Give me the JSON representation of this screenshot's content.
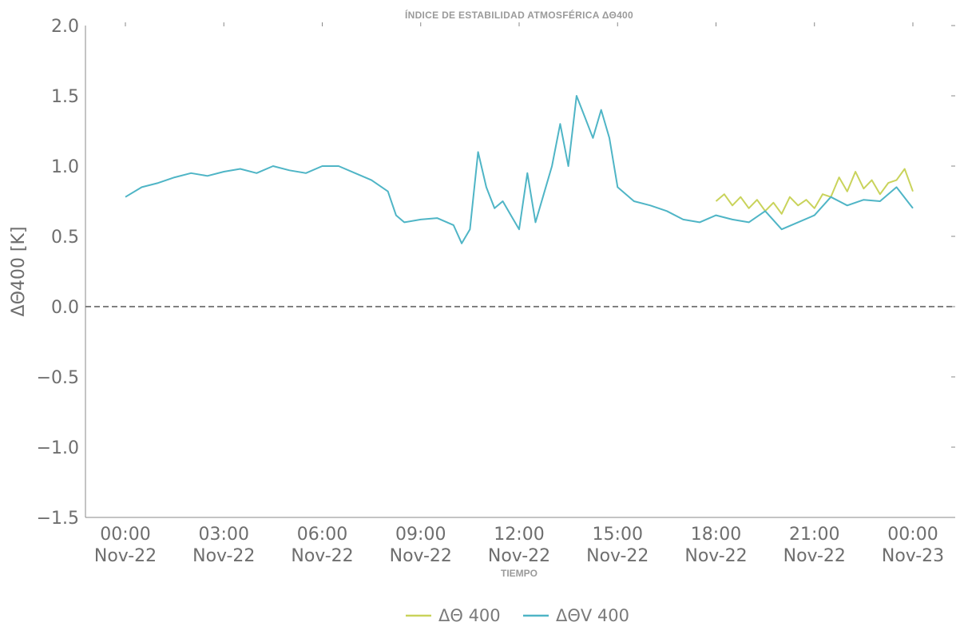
{
  "chart_data": {
    "type": "line",
    "title": "ÍNDICE DE ESTABILIDAD ATMOSFÉRICA ΔΘ400",
    "xlabel": "TIEMPO",
    "ylabel": "ΔΘ400 [K]",
    "ylim": [
      -1.5,
      2.0
    ],
    "xlim": [
      "2022-11-22T00:00",
      "2022-11-23T00:00"
    ],
    "yticks": [
      "2.0",
      "1.5",
      "1.0",
      "0.5",
      "0.0",
      "−0.5",
      "−1.0",
      "−1.5"
    ],
    "xticks": [
      {
        "time": "00:00",
        "date": "Nov-22"
      },
      {
        "time": "03:00",
        "date": "Nov-22"
      },
      {
        "time": "06:00",
        "date": "Nov-22"
      },
      {
        "time": "09:00",
        "date": "Nov-22"
      },
      {
        "time": "12:00",
        "date": "Nov-22"
      },
      {
        "time": "15:00",
        "date": "Nov-22"
      },
      {
        "time": "18:00",
        "date": "Nov-22"
      },
      {
        "time": "21:00",
        "date": "Nov-22"
      },
      {
        "time": "00:00",
        "date": "Nov-23"
      }
    ],
    "reference_line": {
      "y": 0.0,
      "style": "dashed"
    },
    "legend_position": "bottom-center",
    "series": [
      {
        "name": "ΔΘ 400",
        "color": "#c9d35b",
        "x": [
          "2022-11-22T18:00",
          "2022-11-22T18:15",
          "2022-11-22T18:30",
          "2022-11-22T18:45",
          "2022-11-22T19:00",
          "2022-11-22T19:15",
          "2022-11-22T19:30",
          "2022-11-22T19:45",
          "2022-11-22T20:00",
          "2022-11-22T20:15",
          "2022-11-22T20:30",
          "2022-11-22T20:45",
          "2022-11-22T21:00",
          "2022-11-22T21:15",
          "2022-11-22T21:30",
          "2022-11-22T21:45",
          "2022-11-22T22:00",
          "2022-11-22T22:15",
          "2022-11-22T22:30",
          "2022-11-22T22:45",
          "2022-11-22T23:00",
          "2022-11-22T23:15",
          "2022-11-22T23:30",
          "2022-11-22T23:45",
          "2022-11-23T00:00"
        ],
        "y": [
          0.75,
          0.8,
          0.72,
          0.78,
          0.7,
          0.76,
          0.68,
          0.74,
          0.66,
          0.78,
          0.72,
          0.76,
          0.7,
          0.8,
          0.78,
          0.92,
          0.82,
          0.96,
          0.84,
          0.9,
          0.8,
          0.88,
          0.9,
          0.98,
          0.82
        ]
      },
      {
        "name": "ΔΘV 400",
        "color": "#4fb5c6",
        "x": [
          "2022-11-22T00:00",
          "2022-11-22T00:30",
          "2022-11-22T01:00",
          "2022-11-22T01:30",
          "2022-11-22T02:00",
          "2022-11-22T02:30",
          "2022-11-22T03:00",
          "2022-11-22T03:30",
          "2022-11-22T04:00",
          "2022-11-22T04:30",
          "2022-11-22T05:00",
          "2022-11-22T05:30",
          "2022-11-22T06:00",
          "2022-11-22T06:30",
          "2022-11-22T07:00",
          "2022-11-22T07:30",
          "2022-11-22T08:00",
          "2022-11-22T08:15",
          "2022-11-22T08:30",
          "2022-11-22T09:00",
          "2022-11-22T09:30",
          "2022-11-22T10:00",
          "2022-11-22T10:15",
          "2022-11-22T10:30",
          "2022-11-22T10:45",
          "2022-11-22T11:00",
          "2022-11-22T11:15",
          "2022-11-22T11:30",
          "2022-11-22T11:45",
          "2022-11-22T12:00",
          "2022-11-22T12:15",
          "2022-11-22T12:30",
          "2022-11-22T12:45",
          "2022-11-22T13:00",
          "2022-11-22T13:15",
          "2022-11-22T13:30",
          "2022-11-22T13:45",
          "2022-11-22T14:00",
          "2022-11-22T14:15",
          "2022-11-22T14:30",
          "2022-11-22T14:45",
          "2022-11-22T15:00",
          "2022-11-22T15:30",
          "2022-11-22T16:00",
          "2022-11-22T16:30",
          "2022-11-22T17:00",
          "2022-11-22T17:30",
          "2022-11-22T18:00",
          "2022-11-22T18:30",
          "2022-11-22T19:00",
          "2022-11-22T19:30",
          "2022-11-22T20:00",
          "2022-11-22T20:30",
          "2022-11-22T21:00",
          "2022-11-22T21:30",
          "2022-11-22T22:00",
          "2022-11-22T22:30",
          "2022-11-22T23:00",
          "2022-11-22T23:30",
          "2022-11-23T00:00"
        ],
        "y": [
          0.78,
          0.85,
          0.88,
          0.92,
          0.95,
          0.93,
          0.96,
          0.98,
          0.95,
          1.0,
          0.97,
          0.95,
          1.0,
          1.0,
          0.95,
          0.9,
          0.82,
          0.65,
          0.6,
          0.62,
          0.63,
          0.58,
          0.45,
          0.55,
          1.1,
          0.85,
          0.7,
          0.75,
          0.65,
          0.55,
          0.95,
          0.6,
          0.8,
          1.0,
          1.3,
          1.0,
          1.5,
          1.35,
          1.2,
          1.4,
          1.2,
          0.85,
          0.75,
          0.72,
          0.68,
          0.62,
          0.6,
          0.65,
          0.62,
          0.6,
          0.68,
          0.55,
          0.6,
          0.65,
          0.78,
          0.72,
          0.76,
          0.75,
          0.85,
          0.7
        ]
      }
    ]
  }
}
